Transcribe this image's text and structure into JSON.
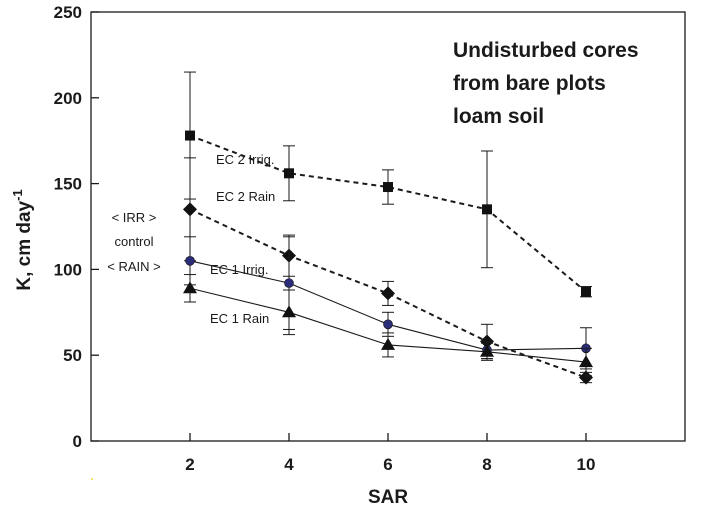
{
  "chart_data": {
    "type": "line",
    "xlabel": "SAR",
    "ylabel": "K, cm day",
    "ylabel_superscript": "-1",
    "xlim": [
      0,
      12
    ],
    "ylim": [
      0,
      250
    ],
    "x_ticks": [
      2,
      4,
      6,
      8,
      10
    ],
    "y_ticks": [
      0,
      50,
      100,
      150,
      200,
      250
    ],
    "grid": false,
    "annotation_title": [
      "Undisturbed cores",
      "from bare plots",
      "loam soil"
    ],
    "control_labels": [
      "< IRR >",
      "control",
      "< RAIN >"
    ],
    "series": [
      {
        "name": "EC 2 Irrig.",
        "marker": "square",
        "line": "dashed",
        "color": "#111111",
        "x": [
          2,
          4,
          6,
          8,
          10
        ],
        "y": [
          178,
          156,
          148,
          135,
          87
        ],
        "err": [
          37,
          16,
          10,
          34,
          3
        ]
      },
      {
        "name": "EC 2 Rain",
        "marker": "diamond",
        "line": "dashed",
        "color": "#111111",
        "x": [
          2,
          4,
          6,
          8,
          10
        ],
        "y": [
          135,
          108,
          86,
          58,
          37
        ],
        "err": [
          30,
          12,
          7,
          10,
          3
        ]
      },
      {
        "name": "EC 1 Irrig.",
        "marker": "circle",
        "line": "solid",
        "color": "#2b2d7a",
        "x": [
          2,
          4,
          6,
          8,
          10
        ],
        "y": [
          105,
          92,
          68,
          53,
          54
        ],
        "err": [
          14,
          27,
          7,
          5,
          12
        ]
      },
      {
        "name": "EC 1 Rain",
        "marker": "triangle",
        "line": "solid",
        "color": "#111111",
        "x": [
          2,
          4,
          6,
          8,
          10
        ],
        "y": [
          89,
          75,
          56,
          52,
          46
        ],
        "err": [
          8,
          13,
          7,
          5,
          8
        ]
      }
    ]
  }
}
